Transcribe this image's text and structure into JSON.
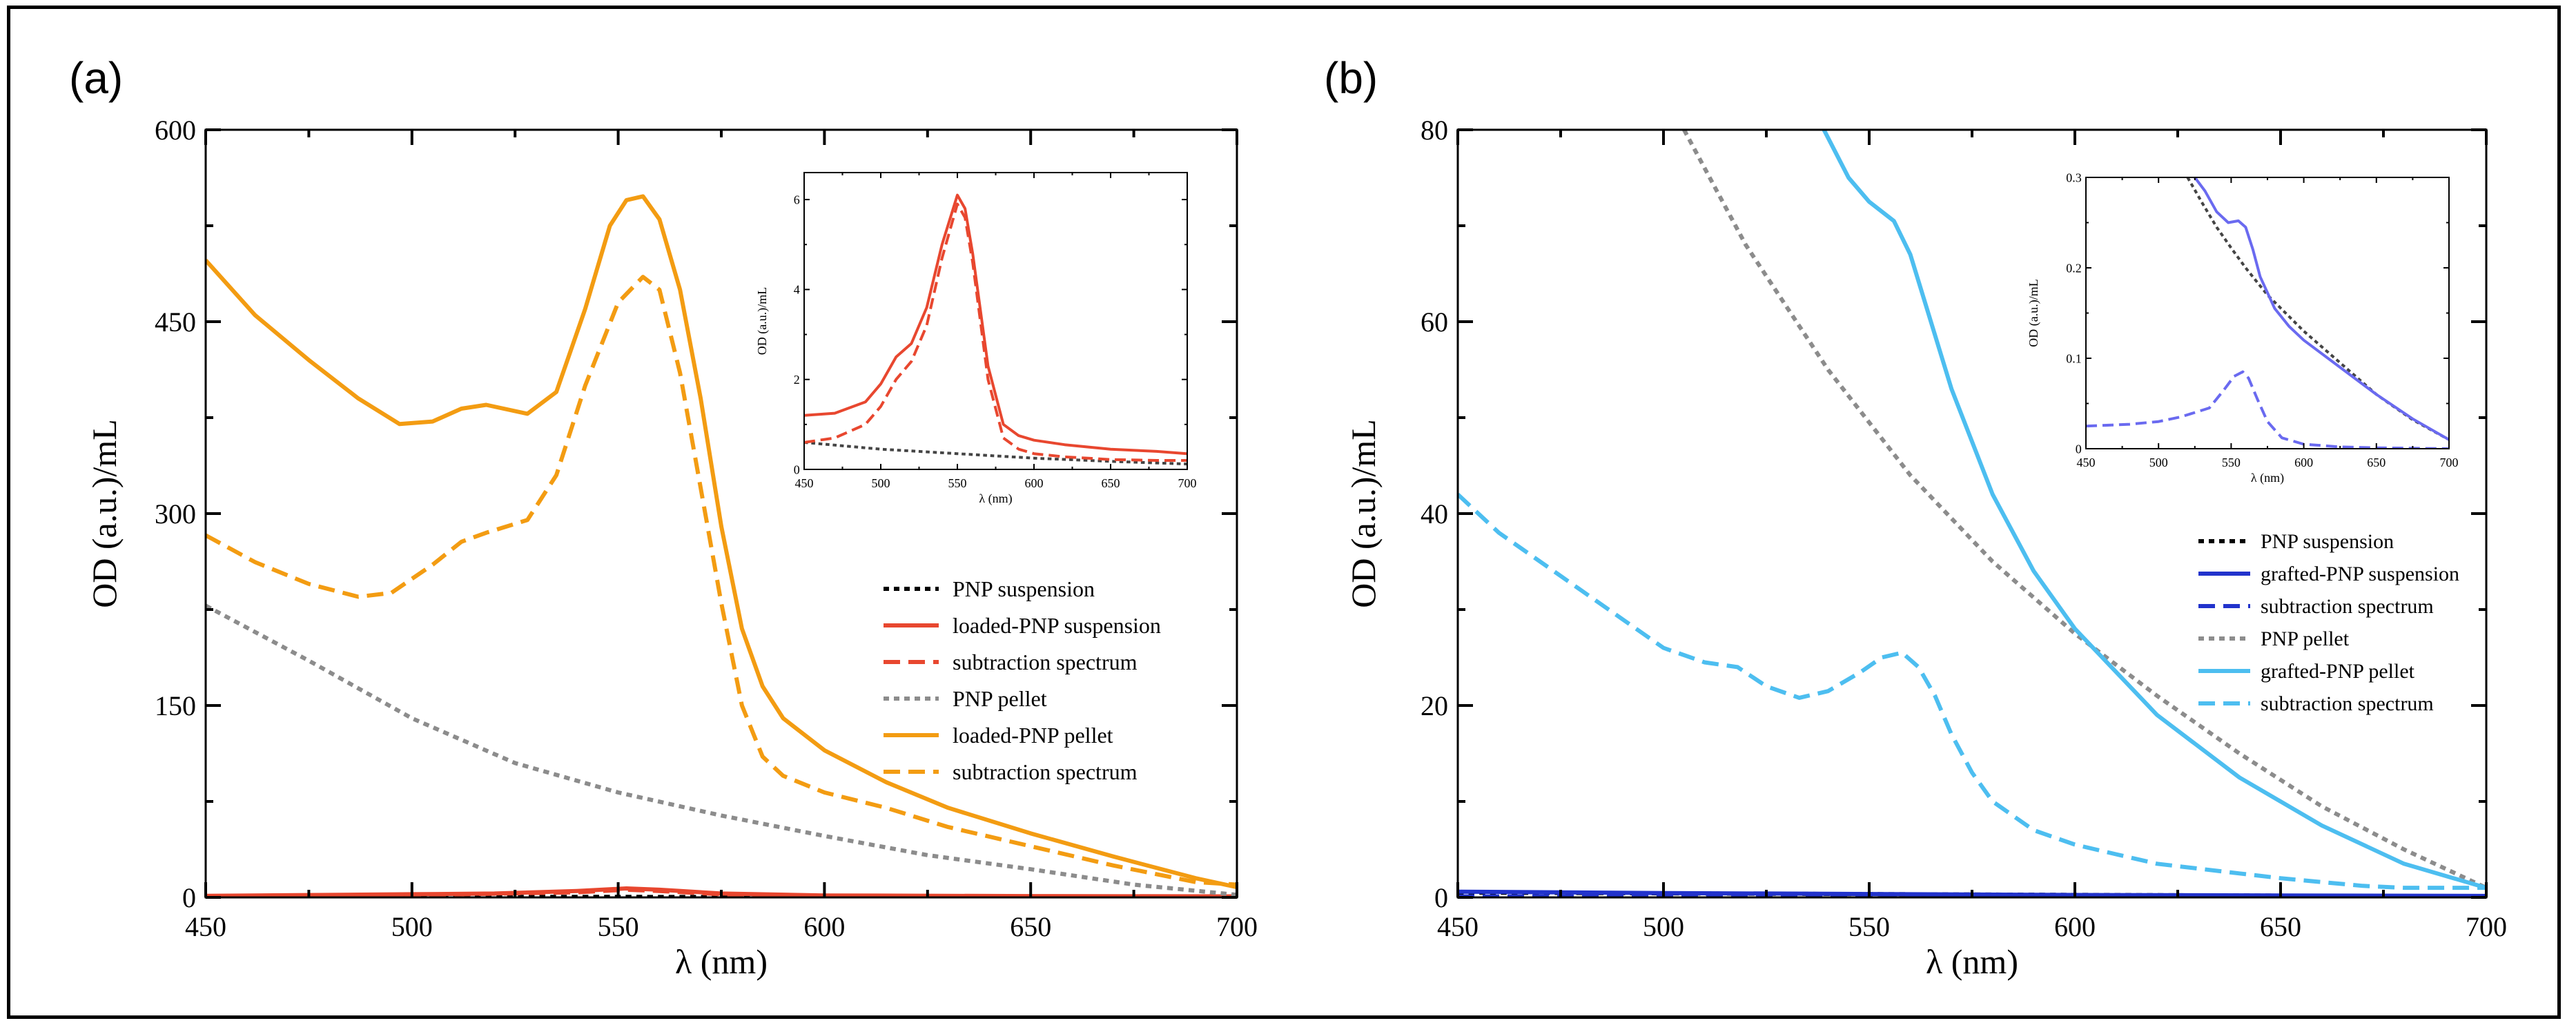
{
  "figure": {
    "panel_a_label": "(a)",
    "panel_b_label": "(b)"
  },
  "chart_data": [
    {
      "id": "a-main",
      "type": "line",
      "xlabel": "λ (nm)",
      "ylabel": "OD (a.u.)/mL",
      "xlim": [
        450,
        700
      ],
      "ylim": [
        0,
        600
      ],
      "xticks": [
        450,
        500,
        550,
        600,
        650,
        700
      ],
      "yticks": [
        0,
        150,
        300,
        450,
        600
      ],
      "series": [
        {
          "name": "PNP suspension",
          "color": "#000000",
          "dash": "dot",
          "x": [
            450,
            500,
            550,
            600,
            650,
            700
          ],
          "y": [
            0.5,
            0.5,
            0.4,
            0.3,
            0.3,
            0.2
          ]
        },
        {
          "name": "loaded-PNP suspension",
          "color": "#e8472f",
          "dash": "solid",
          "x": [
            450,
            500,
            520,
            540,
            552,
            560,
            575,
            600,
            650,
            700
          ],
          "y": [
            1.2,
            2.5,
            3.0,
            5.0,
            7.0,
            6.0,
            3.0,
            1.5,
            1.0,
            0.8
          ]
        },
        {
          "name": "subtraction spectrum",
          "color": "#e8472f",
          "dash": "dash",
          "x": [
            450,
            500,
            540,
            552,
            560,
            575,
            600,
            700
          ],
          "y": [
            0.6,
            1.8,
            4.0,
            6.0,
            5.0,
            2.5,
            1.0,
            0.5
          ]
        },
        {
          "name": "PNP pellet",
          "color": "#8c8c8c",
          "dash": "dot",
          "x": [
            450,
            475,
            500,
            525,
            550,
            575,
            600,
            625,
            650,
            675,
            700
          ],
          "y": [
            228,
            185,
            140,
            105,
            82,
            64,
            48,
            33,
            22,
            10,
            2
          ]
        },
        {
          "name": "loaded-PNP pellet",
          "color": "#f39c12",
          "dash": "solid",
          "x": [
            450,
            462,
            475,
            487,
            497,
            505,
            512,
            518,
            528,
            535,
            542,
            548,
            552,
            556,
            560,
            565,
            570,
            575,
            580,
            585,
            590,
            600,
            615,
            630,
            650,
            670,
            690,
            700
          ],
          "y": [
            498,
            455,
            420,
            390,
            370,
            372,
            382,
            385,
            378,
            395,
            460,
            525,
            545,
            548,
            530,
            475,
            390,
            290,
            210,
            165,
            140,
            115,
            90,
            70,
            50,
            32,
            15,
            8
          ]
        },
        {
          "name": "subtraction spectrum",
          "color": "#f39c12",
          "dash": "dash",
          "x": [
            450,
            462,
            475,
            487,
            495,
            505,
            512,
            518,
            528,
            535,
            542,
            550,
            556,
            560,
            565,
            570,
            575,
            580,
            585,
            590,
            600,
            615,
            630,
            650,
            670,
            690,
            700
          ],
          "y": [
            283,
            262,
            245,
            235,
            238,
            260,
            278,
            285,
            295,
            330,
            400,
            465,
            485,
            475,
            410,
            320,
            230,
            150,
            110,
            95,
            82,
            70,
            55,
            40,
            25,
            12,
            10
          ]
        }
      ]
    },
    {
      "id": "a-inset",
      "type": "line",
      "xlabel": "λ (nm)",
      "ylabel": "OD (a.u.)/mL",
      "xlim": [
        450,
        700
      ],
      "ylim": [
        0,
        6.6
      ],
      "xticks": [
        450,
        500,
        550,
        600,
        650,
        700
      ],
      "yticks": [
        0,
        2,
        4,
        6
      ],
      "series": [
        {
          "name": "PNP suspension",
          "color": "#444444",
          "dash": "dot",
          "x": [
            450,
            500,
            550,
            600,
            650,
            700
          ],
          "y": [
            0.6,
            0.45,
            0.35,
            0.25,
            0.18,
            0.12
          ]
        },
        {
          "name": "loaded-PNP suspension",
          "color": "#e8472f",
          "dash": "solid",
          "x": [
            450,
            470,
            490,
            500,
            510,
            520,
            530,
            540,
            550,
            555,
            560,
            570,
            580,
            590,
            600,
            620,
            650,
            680,
            700
          ],
          "y": [
            1.2,
            1.25,
            1.5,
            1.9,
            2.5,
            2.8,
            3.6,
            5.0,
            6.1,
            5.8,
            4.8,
            2.3,
            1.0,
            0.75,
            0.65,
            0.55,
            0.45,
            0.4,
            0.35
          ]
        },
        {
          "name": "subtraction spectrum",
          "color": "#e8472f",
          "dash": "dash",
          "x": [
            450,
            470,
            490,
            500,
            510,
            520,
            530,
            540,
            550,
            555,
            560,
            570,
            580,
            590,
            600,
            620,
            650,
            680,
            700
          ],
          "y": [
            0.6,
            0.7,
            1.0,
            1.4,
            2.0,
            2.4,
            3.2,
            4.7,
            5.9,
            5.6,
            4.6,
            2.0,
            0.7,
            0.45,
            0.35,
            0.28,
            0.22,
            0.2,
            0.2
          ]
        }
      ]
    },
    {
      "id": "b-main",
      "type": "line",
      "xlabel": "λ (nm)",
      "ylabel": "OD (a.u.)/mL",
      "xlim": [
        450,
        700
      ],
      "ylim": [
        0,
        80
      ],
      "xticks": [
        450,
        500,
        550,
        600,
        650,
        700
      ],
      "yticks": [
        0,
        20,
        40,
        60,
        80
      ],
      "series": [
        {
          "name": "PNP suspension",
          "color": "#000000",
          "dash": "dot",
          "x": [
            450,
            700
          ],
          "y": [
            0.5,
            0.1
          ]
        },
        {
          "name": "grafted-PNP suspension",
          "color": "#2233cc",
          "dash": "solid",
          "x": [
            450,
            500,
            550,
            600,
            650,
            700
          ],
          "y": [
            0.6,
            0.45,
            0.35,
            0.25,
            0.2,
            0.15
          ]
        },
        {
          "name": "subtraction spectrum",
          "color": "#2233cc",
          "dash": "dash",
          "x": [
            450,
            700
          ],
          "y": [
            0.1,
            0.05
          ]
        },
        {
          "name": "PNP pellet",
          "color": "#8c8c8c",
          "dash": "dot",
          "x": [
            505,
            520,
            540,
            560,
            580,
            600,
            620,
            640,
            660,
            680,
            700
          ],
          "y": [
            80,
            68,
            55,
            44,
            35,
            27.5,
            21,
            15,
            9.5,
            5,
            1
          ]
        },
        {
          "name": "grafted-PNP pellet",
          "color": "#4dbef0",
          "dash": "solid",
          "x": [
            539,
            545,
            550,
            556,
            560,
            565,
            570,
            580,
            590,
            600,
            620,
            640,
            660,
            680,
            700
          ],
          "y": [
            80,
            75,
            72.5,
            70.5,
            67,
            60,
            53,
            42,
            34,
            28,
            19,
            12.5,
            7.5,
            3.5,
            1
          ]
        },
        {
          "name": "subtraction spectrum",
          "color": "#4dbef0",
          "dash": "dash",
          "x": [
            450,
            460,
            470,
            480,
            490,
            500,
            510,
            518,
            525,
            533,
            540,
            548,
            553,
            558,
            562,
            566,
            570,
            575,
            580,
            590,
            600,
            610,
            620,
            630,
            640,
            650,
            660,
            670,
            680,
            690,
            700
          ],
          "y": [
            42,
            38,
            35,
            32,
            29,
            26,
            24.5,
            24,
            22,
            20.8,
            21.5,
            23.5,
            25,
            25.5,
            24,
            21,
            17,
            13,
            10,
            7,
            5.5,
            4.5,
            3.5,
            3,
            2.5,
            2,
            1.6,
            1.2,
            1,
            1,
            1
          ]
        }
      ]
    },
    {
      "id": "b-inset",
      "type": "line",
      "xlabel": "λ (nm)",
      "ylabel": "OD (a.u.)/mL",
      "xlim": [
        450,
        700
      ],
      "ylim": [
        0,
        0.3
      ],
      "xticks": [
        450,
        500,
        550,
        600,
        650,
        700
      ],
      "yticks": [
        0,
        0.1,
        0.2,
        0.3
      ],
      "series": [
        {
          "name": "PNP suspension",
          "color": "#444444",
          "dash": "dot",
          "x": [
            520,
            530,
            540,
            550,
            560,
            575,
            600,
            625,
            650,
            675,
            700
          ],
          "y": [
            0.3,
            0.272,
            0.245,
            0.222,
            0.2,
            0.17,
            0.13,
            0.095,
            0.06,
            0.032,
            0.01
          ]
        },
        {
          "name": "grafted-PNP suspension",
          "color": "#6a6af0",
          "dash": "solid",
          "x": [
            525,
            532,
            540,
            548,
            555,
            560,
            565,
            570,
            580,
            590,
            600,
            625,
            650,
            675,
            700
          ],
          "y": [
            0.3,
            0.285,
            0.262,
            0.25,
            0.252,
            0.245,
            0.22,
            0.19,
            0.155,
            0.135,
            0.12,
            0.09,
            0.06,
            0.033,
            0.01
          ]
        },
        {
          "name": "subtraction spectrum",
          "color": "#6a6af0",
          "dash": "dash",
          "x": [
            450,
            480,
            500,
            515,
            525,
            535,
            545,
            552,
            558,
            562,
            568,
            575,
            585,
            600,
            625,
            650,
            700
          ],
          "y": [
            0.025,
            0.027,
            0.03,
            0.035,
            0.04,
            0.045,
            0.065,
            0.08,
            0.085,
            0.078,
            0.055,
            0.03,
            0.012,
            0.005,
            0.002,
            0.001,
            0
          ]
        }
      ]
    }
  ]
}
